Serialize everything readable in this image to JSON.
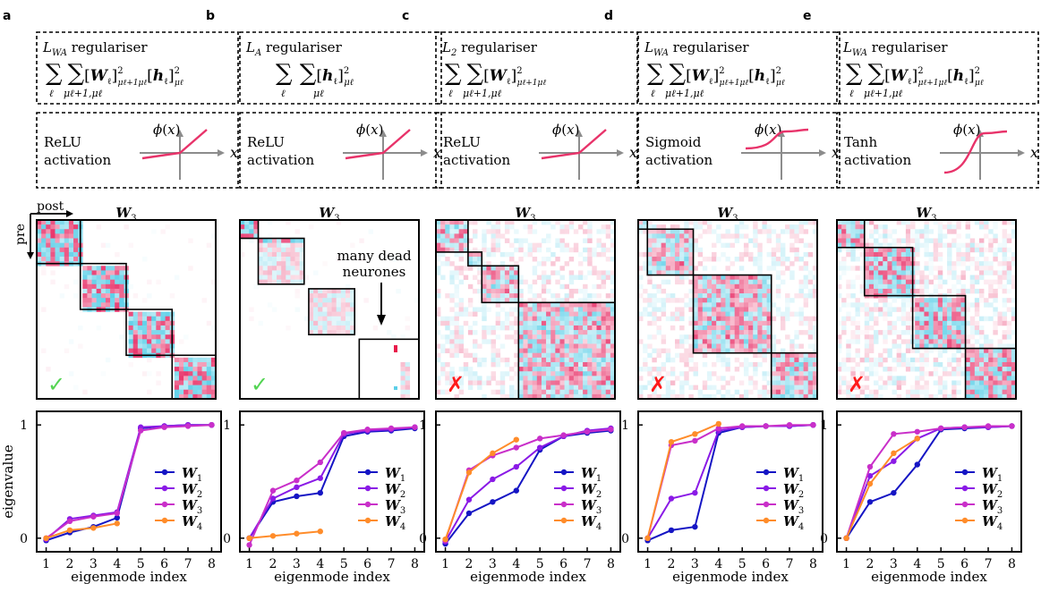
{
  "figure": {
    "colors": {
      "pink": "#e8336a",
      "cyan": "#5ccfe8",
      "green": "#52d452",
      "red": "#ff1a1a",
      "w1": "#1515c4",
      "w2": "#8a1ae6",
      "w3": "#c92fc9",
      "w4": "#ff8c2a",
      "act": "#e8336a",
      "axis": "#8c8c8c"
    },
    "panels": [
      {
        "letter": "a",
        "reg_label": "L_WA regulariser",
        "reg_formula": "Σ_ℓ Σ_{μℓ+1,μℓ} [W_ℓ]²_{μℓ+1 μℓ} [h_ℓ]²_{μℓ}",
        "activation_label": "ReLU activation",
        "activation_type": "relu",
        "matrix_title": "W3",
        "verdict": "✓",
        "verdict_icon": "check-icon",
        "blocks": [
          [
            0,
            0,
            19
          ],
          [
            19,
            19,
            20
          ],
          [
            39,
            39,
            20
          ],
          [
            59,
            59,
            19
          ]
        ]
      },
      {
        "letter": "b",
        "reg_label": "L_A regulariser",
        "reg_formula": "Σ_ℓ Σ_{μℓ} [h_ℓ]²_{μℓ}",
        "activation_label": "ReLU activation",
        "activation_type": "relu",
        "matrix_title": "W3",
        "verdict": "✓",
        "verdict_icon": "check-icon",
        "annotation": "many dead neurones",
        "blocks": [
          [
            0,
            0,
            8
          ],
          [
            8,
            8,
            20
          ],
          [
            30,
            30,
            20
          ],
          [
            52,
            52,
            26
          ]
        ]
      },
      {
        "letter": "c",
        "reg_label": "L_2 regulariser",
        "reg_formula": "Σ_ℓ Σ_{μℓ+1,μℓ} [W_ℓ]²_{μℓ+1 μℓ}",
        "activation_label": "ReLU activation",
        "activation_type": "relu",
        "matrix_title": "W3",
        "verdict": "✗",
        "verdict_icon": "cross-icon",
        "blocks": [
          [
            0,
            0,
            14
          ],
          [
            14,
            14,
            6
          ],
          [
            20,
            20,
            16
          ],
          [
            36,
            36,
            42
          ]
        ]
      },
      {
        "letter": "d",
        "reg_label": "L_WA regulariser",
        "reg_formula": "Σ_ℓ Σ_{μℓ+1,μℓ} [W_ℓ]²_{μℓ+1 μℓ} [h_ℓ]²_{μℓ}",
        "activation_label": "Sigmoid activation",
        "activation_type": "sigmoid",
        "matrix_title": "W3",
        "verdict": "✗",
        "verdict_icon": "cross-icon",
        "blocks": [
          [
            0,
            0,
            4
          ],
          [
            4,
            4,
            20
          ],
          [
            24,
            24,
            34
          ],
          [
            58,
            58,
            20
          ]
        ]
      },
      {
        "letter": "e",
        "reg_label": "L_WA regulariser",
        "reg_formula": "Σ_ℓ Σ_{μℓ+1,μℓ} [W_ℓ]²_{μℓ+1 μℓ} [h_ℓ]²_{μℓ}",
        "activation_label": "Tanh activation",
        "activation_type": "tanh",
        "matrix_title": "W3",
        "verdict": "✗",
        "verdict_icon": "cross-icon",
        "blocks": [
          [
            0,
            0,
            12
          ],
          [
            12,
            12,
            21
          ],
          [
            33,
            33,
            23
          ],
          [
            56,
            56,
            22
          ]
        ]
      }
    ],
    "axis_labels": {
      "post": "post",
      "pre": "pre"
    }
  },
  "chart_data": [
    {
      "type": "line",
      "panel": "a",
      "xlabel": "eigenmode index",
      "ylabel": "eigenvalue",
      "xticks": [
        1,
        2,
        3,
        4,
        5,
        6,
        7,
        8
      ],
      "yticks": [
        0,
        1
      ],
      "ylim": [
        -0.12,
        1.12
      ],
      "series": [
        {
          "name": "W1",
          "x": [
            1,
            2,
            3,
            4,
            5,
            6,
            7,
            8
          ],
          "values": [
            -0.02,
            0.05,
            0.1,
            0.18,
            0.97,
            0.99,
            1.0,
            1.0
          ]
        },
        {
          "name": "W2",
          "x": [
            1,
            2,
            3,
            4,
            5,
            6,
            7,
            8
          ],
          "values": [
            -0.01,
            0.17,
            0.2,
            0.23,
            0.98,
            0.99,
            1.0,
            1.0
          ]
        },
        {
          "name": "W3",
          "x": [
            1,
            2,
            3,
            4,
            5,
            6,
            7,
            8
          ],
          "values": [
            0.0,
            0.15,
            0.19,
            0.22,
            0.95,
            0.98,
            0.99,
            1.0
          ]
        },
        {
          "name": "W4",
          "x": [
            1,
            2,
            3,
            4
          ],
          "values": [
            0.0,
            0.07,
            0.09,
            0.13
          ]
        }
      ]
    },
    {
      "type": "line",
      "panel": "b",
      "xlabel": "eigenmode index",
      "ylabel": "eigenvalue",
      "xticks": [
        1,
        2,
        3,
        4,
        5,
        6,
        7,
        8
      ],
      "yticks": [
        0,
        1
      ],
      "ylim": [
        -0.12,
        1.12
      ],
      "series": [
        {
          "name": "W1",
          "x": [
            1,
            2,
            3,
            4,
            5,
            6,
            7,
            8
          ],
          "values": [
            0.0,
            0.32,
            0.37,
            0.4,
            0.9,
            0.94,
            0.95,
            0.97
          ]
        },
        {
          "name": "W2",
          "x": [
            1,
            2,
            3,
            4,
            5,
            6,
            7,
            8
          ],
          "values": [
            0.0,
            0.35,
            0.45,
            0.53,
            0.92,
            0.95,
            0.96,
            0.98
          ]
        },
        {
          "name": "W3",
          "x": [
            1,
            2,
            3,
            4,
            5,
            6,
            7,
            8
          ],
          "values": [
            -0.06,
            0.42,
            0.51,
            0.67,
            0.93,
            0.96,
            0.97,
            0.98
          ]
        },
        {
          "name": "W4",
          "x": [
            1,
            2,
            3,
            4
          ],
          "values": [
            0.0,
            0.02,
            0.04,
            0.06
          ]
        }
      ]
    },
    {
      "type": "line",
      "panel": "c",
      "xlabel": "eigenmode index",
      "ylabel": "eigenvalue",
      "xticks": [
        1,
        2,
        3,
        4,
        5,
        6,
        7,
        8
      ],
      "yticks": [
        0,
        1
      ],
      "ylim": [
        -0.12,
        1.12
      ],
      "series": [
        {
          "name": "W1",
          "x": [
            1,
            2,
            3,
            4,
            5,
            6,
            7,
            8
          ],
          "values": [
            -0.05,
            0.22,
            0.32,
            0.42,
            0.78,
            0.9,
            0.93,
            0.95
          ]
        },
        {
          "name": "W2",
          "x": [
            1,
            2,
            3,
            4,
            5,
            6,
            7,
            8
          ],
          "values": [
            -0.03,
            0.34,
            0.52,
            0.63,
            0.8,
            0.9,
            0.95,
            0.97
          ]
        },
        {
          "name": "W3",
          "x": [
            1,
            2,
            3,
            4,
            5,
            6,
            7,
            8
          ],
          "values": [
            -0.02,
            0.6,
            0.73,
            0.8,
            0.88,
            0.91,
            0.94,
            0.96
          ]
        },
        {
          "name": "W4",
          "x": [
            1,
            2,
            3,
            4
          ],
          "values": [
            -0.01,
            0.58,
            0.75,
            0.87
          ]
        }
      ]
    },
    {
      "type": "line",
      "panel": "d",
      "xlabel": "eigenmode index",
      "ylabel": "eigenvalue",
      "xticks": [
        1,
        2,
        3,
        4,
        5,
        6,
        7,
        8
      ],
      "yticks": [
        0,
        1
      ],
      "ylim": [
        -0.12,
        1.12
      ],
      "series": [
        {
          "name": "W1",
          "x": [
            1,
            2,
            3,
            4,
            5,
            6,
            7,
            8
          ],
          "values": [
            -0.02,
            0.07,
            0.1,
            0.93,
            0.98,
            0.99,
            0.99,
            1.0
          ]
        },
        {
          "name": "W2",
          "x": [
            1,
            2,
            3,
            4,
            5,
            6,
            7,
            8
          ],
          "values": [
            0.0,
            0.35,
            0.4,
            0.95,
            0.98,
            0.99,
            0.99,
            1.0
          ]
        },
        {
          "name": "W3",
          "x": [
            1,
            2,
            3,
            4,
            5,
            6,
            7,
            8
          ],
          "values": [
            0.0,
            0.82,
            0.86,
            0.97,
            0.99,
            0.99,
            1.0,
            1.0
          ]
        },
        {
          "name": "W4",
          "x": [
            1,
            2,
            3,
            4
          ],
          "values": [
            0.0,
            0.85,
            0.92,
            1.01
          ]
        }
      ]
    },
    {
      "type": "line",
      "panel": "e",
      "xlabel": "eigenmode index",
      "ylabel": "eigenvalue",
      "xticks": [
        1,
        2,
        3,
        4,
        5,
        6,
        7,
        8
      ],
      "yticks": [
        0,
        1
      ],
      "ylim": [
        -0.12,
        1.12
      ],
      "series": [
        {
          "name": "W1",
          "x": [
            1,
            2,
            3,
            4,
            5,
            6,
            7,
            8
          ],
          "values": [
            0.0,
            0.32,
            0.4,
            0.65,
            0.96,
            0.97,
            0.98,
            0.99
          ]
        },
        {
          "name": "W2",
          "x": [
            1,
            2,
            3,
            4,
            5,
            6,
            7,
            8
          ],
          "values": [
            0.0,
            0.55,
            0.68,
            0.88,
            0.97,
            0.98,
            0.98,
            0.99
          ]
        },
        {
          "name": "W3",
          "x": [
            1,
            2,
            3,
            4,
            5,
            6,
            7,
            8
          ],
          "values": [
            0.0,
            0.63,
            0.92,
            0.94,
            0.97,
            0.98,
            0.99,
            0.99
          ]
        },
        {
          "name": "W4",
          "x": [
            1,
            2,
            3,
            4
          ],
          "values": [
            0.0,
            0.48,
            0.75,
            0.88
          ]
        }
      ]
    }
  ]
}
